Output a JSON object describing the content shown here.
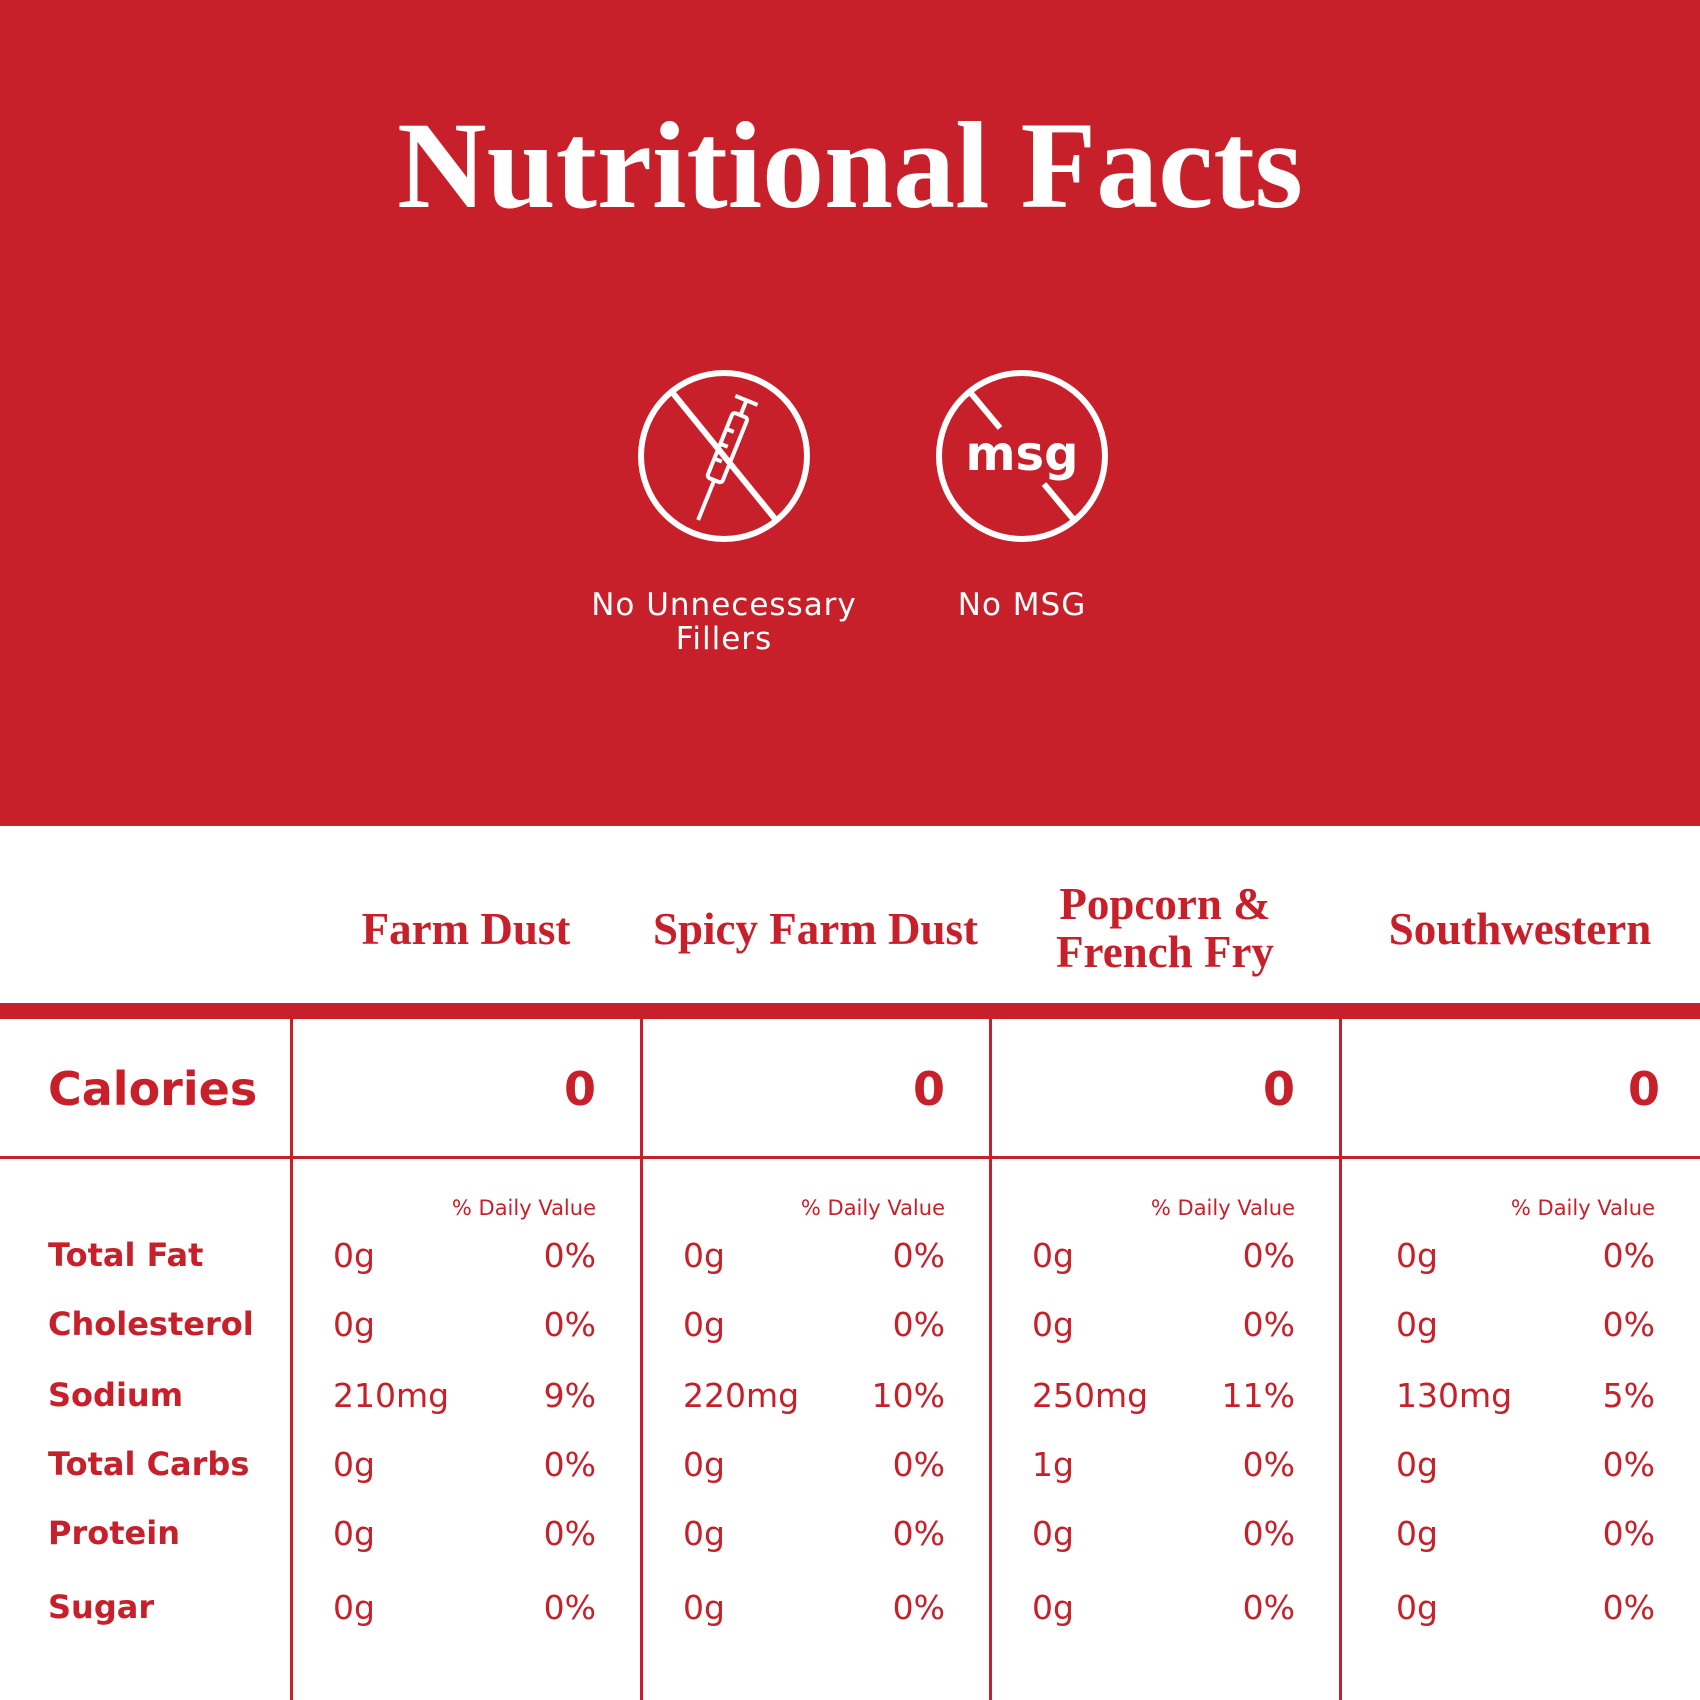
{
  "header": {
    "title": "Nutritional Facts",
    "badges": [
      {
        "label": "No Unnecessary Fillers"
      },
      {
        "icon_text": "msg",
        "label": "No MSG"
      }
    ]
  },
  "table": {
    "columns": [
      "Farm Dust",
      "Spicy Farm Dust",
      "Popcorn & French Fry",
      "Southwestern"
    ],
    "calories": {
      "label": "Calories",
      "values": [
        "0",
        "0",
        "0",
        "0"
      ]
    },
    "daily_value_label": "% Daily Value",
    "rows": [
      {
        "label": "Total Fat",
        "cells": [
          [
            "0g",
            "0%"
          ],
          [
            "0g",
            "0%"
          ],
          [
            "0g",
            "0%"
          ],
          [
            "0g",
            "0%"
          ]
        ]
      },
      {
        "label": "Cholesterol",
        "cells": [
          [
            "0g",
            "0%"
          ],
          [
            "0g",
            "0%"
          ],
          [
            "0g",
            "0%"
          ],
          [
            "0g",
            "0%"
          ]
        ]
      },
      {
        "label": "Sodium",
        "cells": [
          [
            "210mg",
            "9%"
          ],
          [
            "220mg",
            "10%"
          ],
          [
            "250mg",
            "11%"
          ],
          [
            "130mg",
            "5%"
          ]
        ]
      },
      {
        "label": "Total Carbs",
        "cells": [
          [
            "0g",
            "0%"
          ],
          [
            "0g",
            "0%"
          ],
          [
            "1g",
            "0%"
          ],
          [
            "0g",
            "0%"
          ]
        ]
      },
      {
        "label": "Protein",
        "cells": [
          [
            "0g",
            "0%"
          ],
          [
            "0g",
            "0%"
          ],
          [
            "0g",
            "0%"
          ],
          [
            "0g",
            "0%"
          ]
        ]
      },
      {
        "label": "Sugar",
        "cells": [
          [
            "0g",
            "0%"
          ],
          [
            "0g",
            "0%"
          ],
          [
            "0g",
            "0%"
          ],
          [
            "0g",
            "0%"
          ]
        ]
      }
    ]
  }
}
